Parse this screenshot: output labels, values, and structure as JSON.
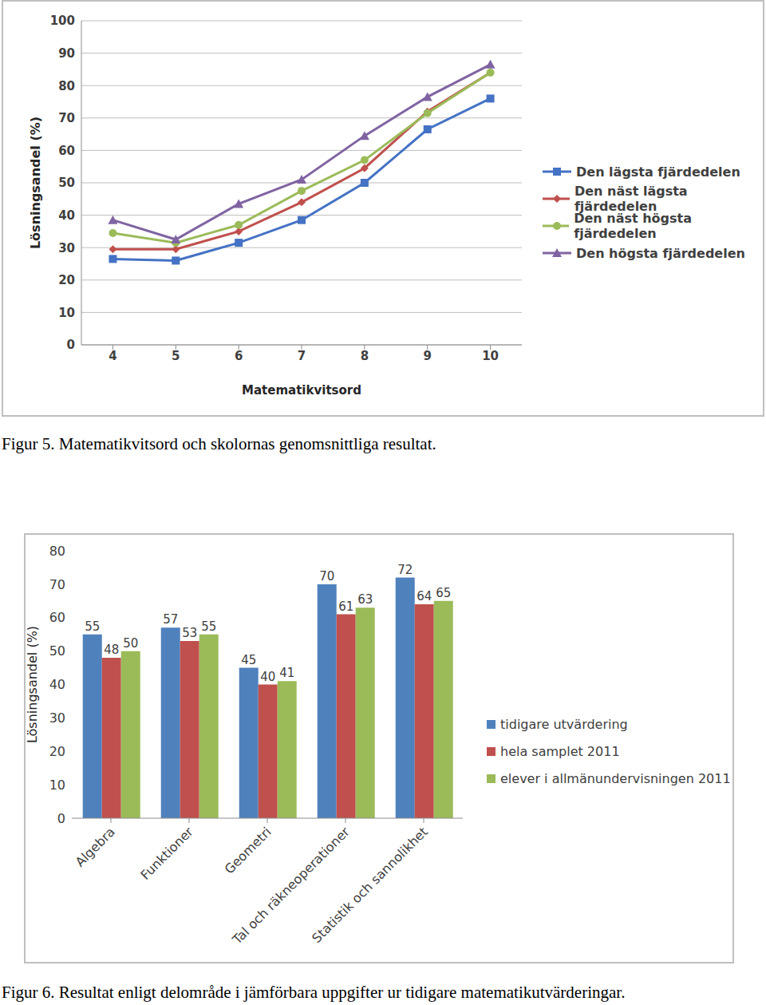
{
  "chart_data": [
    {
      "type": "line",
      "caption": "Figur 5. Matematikvitsord och skolornas genomsnittliga resultat.",
      "x_label": "Matematikvitsord",
      "y_label": "Lösningsandel (%)",
      "x": [
        4,
        5,
        6,
        7,
        8,
        9,
        10
      ],
      "xlim": [
        3.5,
        10.5
      ],
      "xticks": [
        4,
        5,
        6,
        7,
        8,
        9,
        10
      ],
      "ylim": [
        0,
        100
      ],
      "yticks": [
        0,
        10,
        20,
        30,
        40,
        50,
        60,
        70,
        80,
        90,
        100
      ],
      "grid": true,
      "legend": "right",
      "series": [
        {
          "name": "Den lägsta fjärdedelen",
          "color": "#4472c4",
          "marker": "square",
          "values": [
            26.5,
            26,
            31.5,
            38.5,
            50,
            66.5,
            76
          ]
        },
        {
          "name": "Den näst lägsta fjärdedelen",
          "color": "#c0504d",
          "marker": "diamond",
          "values": [
            29.5,
            29.5,
            35,
            44,
            54.5,
            72,
            84
          ]
        },
        {
          "name": "Den näst högsta fjärdedelen",
          "color": "#9bbb59",
          "marker": "circle",
          "values": [
            34.5,
            31.5,
            37,
            47.5,
            57,
            71.5,
            84
          ]
        },
        {
          "name": "Den högsta fjärdedelen",
          "color": "#8064a2",
          "marker": "triangle",
          "values": [
            38.5,
            32.5,
            43.5,
            51,
            64.5,
            76.5,
            86.5
          ]
        }
      ]
    },
    {
      "type": "bar",
      "caption": "Figur 6. Resultat enligt delområde i jämförbara uppgifter ur tidigare matematikutvärderingar.",
      "y_label": "Lösningsandel (%)",
      "categories": [
        "Algebra",
        "Funktioner",
        "Geometri",
        "Tal och räkneoperationer",
        "Statistik och sannolikhet"
      ],
      "ylim": [
        0,
        80
      ],
      "yticks": [
        0,
        10,
        20,
        30,
        40,
        50,
        60,
        70,
        80
      ],
      "grid": false,
      "legend": "right",
      "data_labels": true,
      "series": [
        {
          "name": "tidigare utvärdering",
          "color": "#4f81bd",
          "values": [
            55,
            57,
            45,
            70,
            72
          ]
        },
        {
          "name": "hela samplet 2011",
          "color": "#c0504d",
          "values": [
            48,
            53,
            40,
            61,
            64
          ]
        },
        {
          "name": "elever i allmänundervisningen 2011",
          "color": "#9bbb59",
          "values": [
            50,
            55,
            41,
            63,
            65
          ]
        }
      ]
    }
  ]
}
